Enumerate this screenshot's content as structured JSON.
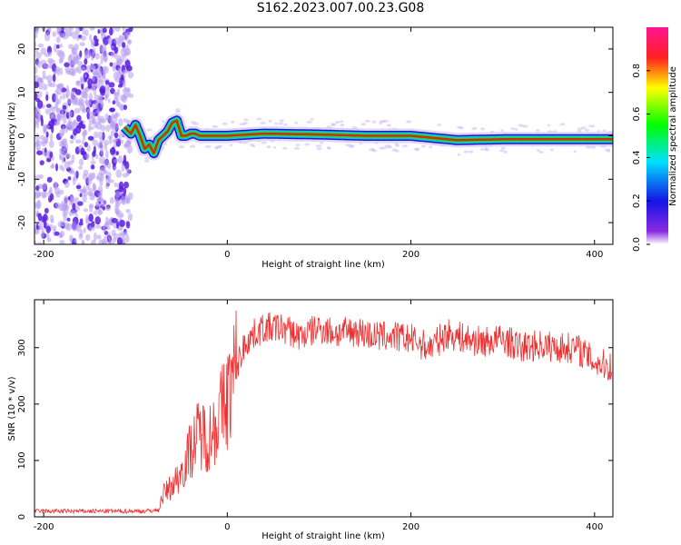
{
  "title": "S162.2023.007.00.23.G08",
  "chart_data": [
    {
      "type": "heatmap",
      "xlabel": "Height of straight line (km)",
      "ylabel": "Frequency (Hz)",
      "xlim": [
        -210,
        420
      ],
      "ylim": [
        -25,
        25
      ],
      "xticks": [
        -200,
        0,
        200,
        400
      ],
      "yticks": [
        -20,
        -10,
        0,
        10,
        20
      ],
      "grid": false,
      "colorbar": {
        "label": "Normalized spectral amplitude",
        "range": [
          0.0,
          1.0
        ],
        "ticks": [
          0.0,
          0.2,
          0.4,
          0.6,
          0.8
        ]
      },
      "ridge": {
        "x": [
          -112,
          -105,
          -100,
          -95,
          -90,
          -85,
          -80,
          -75,
          -70,
          -65,
          -60,
          -55,
          -50,
          -45,
          -40,
          -35,
          -30,
          -20,
          0,
          40,
          100,
          150,
          200,
          250,
          300,
          350,
          420
        ],
        "y": [
          2,
          0.5,
          2.5,
          0,
          -3,
          -2,
          -4,
          -1,
          0,
          1,
          3,
          3.5,
          0,
          0,
          0.5,
          0.5,
          0,
          0,
          0,
          0.5,
          0.3,
          0,
          0,
          -1,
          -0.8,
          -0.8,
          -0.8
        ]
      },
      "noise_region_x": [
        -210,
        -100
      ]
    },
    {
      "type": "line",
      "xlabel": "Height of straight line (km)",
      "ylabel": "SNR (10 * v/v)",
      "xlim": [
        -210,
        420
      ],
      "ylim": [
        0,
        385
      ],
      "xticks": [
        -200,
        0,
        200,
        400
      ],
      "yticks": [
        0,
        100,
        200,
        300
      ],
      "grid": false,
      "series": [
        {
          "color": "#ee3030",
          "x": [
            -210,
            -180,
            -150,
            -120,
            -90,
            -75,
            -70,
            -60,
            -50,
            -40,
            -30,
            -20,
            -10,
            0,
            10,
            20,
            30,
            40,
            60,
            80,
            100,
            120,
            140,
            160,
            180,
            200,
            220,
            240,
            260,
            280,
            300,
            320,
            340,
            360,
            380,
            400,
            420
          ],
          "y": [
            10,
            10,
            10,
            10,
            10,
            12,
            40,
            55,
            80,
            120,
            150,
            140,
            175,
            210,
            265,
            310,
            325,
            335,
            335,
            320,
            335,
            325,
            330,
            320,
            320,
            315,
            300,
            325,
            315,
            310,
            315,
            300,
            305,
            300,
            300,
            275,
            265
          ]
        }
      ]
    }
  ]
}
